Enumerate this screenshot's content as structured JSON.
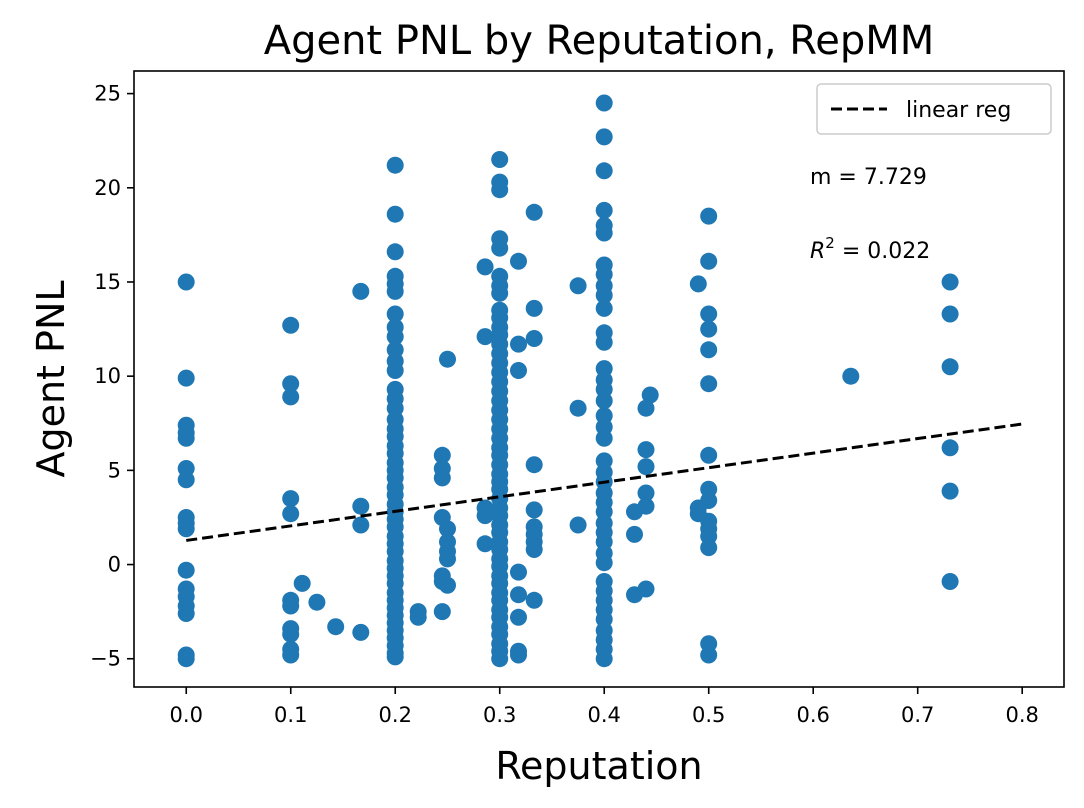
{
  "chart_data": {
    "type": "scatter",
    "title": "Agent PNL by Reputation, RepMM",
    "xlabel": "Reputation",
    "ylabel": "Agent PNL",
    "xlim": [
      -0.05,
      0.84
    ],
    "ylim": [
      -6.5,
      26.2
    ],
    "xticks": [
      "0.0",
      "0.1",
      "0.2",
      "0.3",
      "0.4",
      "0.5",
      "0.6",
      "0.7",
      "0.8"
    ],
    "yticks": [
      "−5",
      "0",
      "5",
      "10",
      "15",
      "20",
      "25"
    ],
    "grid": false,
    "legend_position": "top-right",
    "point_color": "#1f77b4",
    "line_color": "#000000",
    "series": [
      {
        "kind": "scatter",
        "points": [
          [
            0.0,
            15.0
          ],
          [
            0.0,
            9.9
          ],
          [
            0.0,
            7.4
          ],
          [
            0.0,
            7.0
          ],
          [
            0.0,
            6.7
          ],
          [
            0.0,
            5.1
          ],
          [
            0.0,
            4.5
          ],
          [
            0.0,
            2.5
          ],
          [
            0.0,
            2.2
          ],
          [
            0.0,
            1.9
          ],
          [
            0.0,
            -0.3
          ],
          [
            0.0,
            -1.3
          ],
          [
            0.0,
            -1.7
          ],
          [
            0.0,
            -2.2
          ],
          [
            0.0,
            -2.6
          ],
          [
            0.0,
            -4.8
          ],
          [
            0.0,
            -5.0
          ],
          [
            0.1,
            12.7
          ],
          [
            0.1,
            9.6
          ],
          [
            0.1,
            8.9
          ],
          [
            0.1,
            3.5
          ],
          [
            0.1,
            2.7
          ],
          [
            0.1,
            -1.9
          ],
          [
            0.1,
            -2.2
          ],
          [
            0.1,
            -3.4
          ],
          [
            0.1,
            -3.7
          ],
          [
            0.1,
            -4.5
          ],
          [
            0.1,
            -4.8
          ],
          [
            0.111,
            -1.0
          ],
          [
            0.125,
            -2.0
          ],
          [
            0.143,
            -3.3
          ],
          [
            0.167,
            14.5
          ],
          [
            0.167,
            3.1
          ],
          [
            0.167,
            2.1
          ],
          [
            0.167,
            -3.6
          ],
          [
            0.2,
            21.2
          ],
          [
            0.2,
            18.6
          ],
          [
            0.2,
            16.6
          ],
          [
            0.2,
            15.3
          ],
          [
            0.2,
            14.9
          ],
          [
            0.2,
            14.5
          ],
          [
            0.2,
            13.3
          ],
          [
            0.2,
            12.6
          ],
          [
            0.2,
            12.1
          ],
          [
            0.2,
            11.4
          ],
          [
            0.2,
            10.8
          ],
          [
            0.2,
            10.3
          ],
          [
            0.2,
            9.3
          ],
          [
            0.2,
            8.8
          ],
          [
            0.2,
            8.3
          ],
          [
            0.2,
            7.7
          ],
          [
            0.2,
            7.2
          ],
          [
            0.2,
            6.8
          ],
          [
            0.2,
            6.3
          ],
          [
            0.2,
            5.9
          ],
          [
            0.2,
            5.4
          ],
          [
            0.2,
            5.0
          ],
          [
            0.2,
            4.6
          ],
          [
            0.2,
            4.1
          ],
          [
            0.2,
            3.7
          ],
          [
            0.2,
            3.2
          ],
          [
            0.2,
            2.8
          ],
          [
            0.2,
            2.4
          ],
          [
            0.2,
            2.0
          ],
          [
            0.2,
            1.5
          ],
          [
            0.2,
            1.1
          ],
          [
            0.2,
            0.7
          ],
          [
            0.2,
            0.2
          ],
          [
            0.2,
            -0.2
          ],
          [
            0.2,
            -0.6
          ],
          [
            0.2,
            -1.0
          ],
          [
            0.2,
            -1.5
          ],
          [
            0.2,
            -1.9
          ],
          [
            0.2,
            -2.3
          ],
          [
            0.2,
            -2.7
          ],
          [
            0.2,
            -3.1
          ],
          [
            0.2,
            -3.5
          ],
          [
            0.2,
            -3.9
          ],
          [
            0.2,
            -4.3
          ],
          [
            0.2,
            -4.7
          ],
          [
            0.2,
            -4.9
          ],
          [
            0.222,
            -2.5
          ],
          [
            0.222,
            -2.8
          ],
          [
            0.25,
            10.9
          ],
          [
            0.25,
            1.9
          ],
          [
            0.25,
            1.2
          ],
          [
            0.25,
            0.7
          ],
          [
            0.25,
            0.3
          ],
          [
            0.25,
            -1.1
          ],
          [
            0.245,
            5.8
          ],
          [
            0.245,
            5.1
          ],
          [
            0.245,
            4.6
          ],
          [
            0.245,
            2.5
          ],
          [
            0.245,
            -0.6
          ],
          [
            0.245,
            -0.9
          ],
          [
            0.245,
            -2.5
          ],
          [
            0.286,
            15.8
          ],
          [
            0.286,
            12.1
          ],
          [
            0.286,
            3.0
          ],
          [
            0.286,
            2.6
          ],
          [
            0.286,
            1.1
          ],
          [
            0.3,
            21.5
          ],
          [
            0.3,
            20.3
          ],
          [
            0.3,
            19.9
          ],
          [
            0.3,
            17.3
          ],
          [
            0.3,
            16.8
          ],
          [
            0.3,
            15.3
          ],
          [
            0.3,
            14.8
          ],
          [
            0.3,
            14.4
          ],
          [
            0.3,
            13.5
          ],
          [
            0.3,
            13.1
          ],
          [
            0.3,
            12.6
          ],
          [
            0.3,
            12.2
          ],
          [
            0.3,
            11.7
          ],
          [
            0.3,
            11.2
          ],
          [
            0.3,
            10.7
          ],
          [
            0.3,
            10.2
          ],
          [
            0.3,
            9.7
          ],
          [
            0.3,
            9.2
          ],
          [
            0.3,
            8.7
          ],
          [
            0.3,
            8.2
          ],
          [
            0.3,
            7.7
          ],
          [
            0.3,
            7.2
          ],
          [
            0.3,
            6.7
          ],
          [
            0.3,
            6.2
          ],
          [
            0.3,
            5.8
          ],
          [
            0.3,
            5.3
          ],
          [
            0.3,
            4.8
          ],
          [
            0.3,
            4.4
          ],
          [
            0.3,
            4.0
          ],
          [
            0.3,
            3.5
          ],
          [
            0.3,
            3.0
          ],
          [
            0.3,
            2.6
          ],
          [
            0.3,
            2.1
          ],
          [
            0.3,
            1.7
          ],
          [
            0.3,
            1.2
          ],
          [
            0.3,
            0.8
          ],
          [
            0.3,
            0.3
          ],
          [
            0.3,
            -0.1
          ],
          [
            0.3,
            -0.6
          ],
          [
            0.3,
            -1.0
          ],
          [
            0.3,
            -1.5
          ],
          [
            0.3,
            -1.9
          ],
          [
            0.3,
            -2.4
          ],
          [
            0.3,
            -2.8
          ],
          [
            0.3,
            -3.3
          ],
          [
            0.3,
            -3.7
          ],
          [
            0.3,
            -4.2
          ],
          [
            0.3,
            -4.6
          ],
          [
            0.3,
            -5.0
          ],
          [
            0.318,
            16.1
          ],
          [
            0.318,
            11.7
          ],
          [
            0.318,
            10.3
          ],
          [
            0.318,
            -0.4
          ],
          [
            0.318,
            -1.6
          ],
          [
            0.318,
            -2.8
          ],
          [
            0.318,
            -4.6
          ],
          [
            0.318,
            -4.8
          ],
          [
            0.333,
            18.7
          ],
          [
            0.333,
            13.6
          ],
          [
            0.333,
            12.0
          ],
          [
            0.333,
            5.3
          ],
          [
            0.333,
            2.9
          ],
          [
            0.333,
            2.0
          ],
          [
            0.333,
            1.6
          ],
          [
            0.333,
            1.2
          ],
          [
            0.333,
            0.8
          ],
          [
            0.333,
            -1.9
          ],
          [
            0.375,
            14.8
          ],
          [
            0.375,
            8.3
          ],
          [
            0.375,
            2.1
          ],
          [
            0.4,
            24.5
          ],
          [
            0.4,
            22.7
          ],
          [
            0.4,
            20.9
          ],
          [
            0.4,
            18.8
          ],
          [
            0.4,
            18.0
          ],
          [
            0.4,
            17.6
          ],
          [
            0.4,
            15.9
          ],
          [
            0.4,
            15.4
          ],
          [
            0.4,
            14.8
          ],
          [
            0.4,
            14.3
          ],
          [
            0.4,
            13.6
          ],
          [
            0.4,
            12.3
          ],
          [
            0.4,
            11.8
          ],
          [
            0.4,
            10.4
          ],
          [
            0.4,
            9.8
          ],
          [
            0.4,
            9.3
          ],
          [
            0.4,
            8.7
          ],
          [
            0.4,
            7.9
          ],
          [
            0.4,
            7.3
          ],
          [
            0.4,
            6.7
          ],
          [
            0.4,
            5.5
          ],
          [
            0.4,
            4.9
          ],
          [
            0.4,
            4.4
          ],
          [
            0.4,
            3.8
          ],
          [
            0.4,
            3.3
          ],
          [
            0.4,
            2.8
          ],
          [
            0.4,
            2.2
          ],
          [
            0.4,
            1.7
          ],
          [
            0.4,
            1.2
          ],
          [
            0.4,
            0.6
          ],
          [
            0.4,
            0.1
          ],
          [
            0.4,
            -0.9
          ],
          [
            0.4,
            -1.4
          ],
          [
            0.4,
            -1.9
          ],
          [
            0.4,
            -2.4
          ],
          [
            0.4,
            -2.9
          ],
          [
            0.4,
            -3.5
          ],
          [
            0.4,
            -4.0
          ],
          [
            0.4,
            -4.5
          ],
          [
            0.4,
            -5.0
          ],
          [
            0.429,
            2.8
          ],
          [
            0.429,
            1.6
          ],
          [
            0.429,
            -1.6
          ],
          [
            0.444,
            9.0
          ],
          [
            0.44,
            8.3
          ],
          [
            0.44,
            6.1
          ],
          [
            0.44,
            5.2
          ],
          [
            0.44,
            3.8
          ],
          [
            0.44,
            3.1
          ],
          [
            0.44,
            -1.3
          ],
          [
            0.49,
            14.9
          ],
          [
            0.49,
            3.0
          ],
          [
            0.49,
            2.7
          ],
          [
            0.5,
            18.5
          ],
          [
            0.5,
            16.1
          ],
          [
            0.5,
            13.3
          ],
          [
            0.5,
            12.5
          ],
          [
            0.5,
            11.4
          ],
          [
            0.5,
            9.6
          ],
          [
            0.5,
            5.8
          ],
          [
            0.5,
            4.0
          ],
          [
            0.5,
            3.4
          ],
          [
            0.5,
            2.3
          ],
          [
            0.5,
            1.9
          ],
          [
            0.5,
            1.5
          ],
          [
            0.5,
            0.9
          ],
          [
            0.5,
            -4.2
          ],
          [
            0.5,
            -4.8
          ],
          [
            0.636,
            10.0
          ],
          [
            0.731,
            15.0
          ],
          [
            0.731,
            13.3
          ],
          [
            0.731,
            10.5
          ],
          [
            0.731,
            6.2
          ],
          [
            0.731,
            3.9
          ],
          [
            0.731,
            -0.9
          ]
        ]
      },
      {
        "kind": "line",
        "name": "linear reg",
        "x": [
          0.0,
          0.8
        ],
        "y": [
          1.28,
          7.46
        ]
      }
    ],
    "annotations": {
      "slope": "m = 7.729",
      "r2_prefix": "R",
      "r2_sup": "2",
      "r2_value": " =  0.022"
    },
    "legend": {
      "label": "linear reg"
    }
  }
}
